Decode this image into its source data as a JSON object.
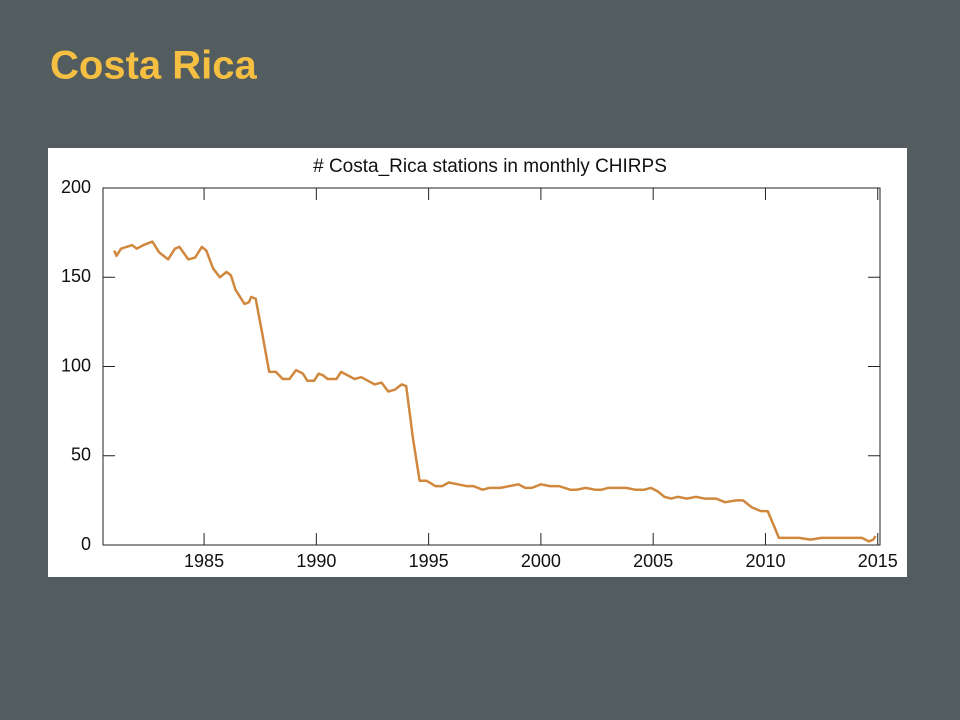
{
  "slide_title": "Costa Rica",
  "chart_data": {
    "type": "line",
    "title": "# Costa_Rica stations in monthly CHIRPS",
    "color": "#d0883e",
    "x": [
      1981.0,
      1981.1,
      1981.3,
      1981.8,
      1982.0,
      1982.3,
      1982.7,
      1983.0,
      1983.4,
      1983.7,
      1983.9,
      1984.3,
      1984.6,
      1984.9,
      1985.1,
      1985.4,
      1985.7,
      1986.0,
      1986.2,
      1986.4,
      1986.8,
      1987.0,
      1987.1,
      1987.3,
      1987.6,
      1987.9,
      1988.2,
      1988.5,
      1988.8,
      1989.1,
      1989.4,
      1989.6,
      1989.9,
      1990.1,
      1990.3,
      1990.5,
      1990.9,
      1991.1,
      1991.4,
      1991.7,
      1992.0,
      1992.3,
      1992.6,
      1992.9,
      1993.2,
      1993.5,
      1993.8,
      1994.0,
      1994.3,
      1994.6,
      1994.9,
      1995.3,
      1995.6,
      1995.9,
      1996.3,
      1996.7,
      1997.0,
      1997.4,
      1997.7,
      1998.2,
      1998.6,
      1999.0,
      1999.3,
      1999.6,
      2000.0,
      2000.4,
      2000.8,
      2001.3,
      2001.6,
      2002.0,
      2002.4,
      2002.7,
      2003.0,
      2003.4,
      2003.8,
      2004.2,
      2004.6,
      2004.9,
      2005.2,
      2005.5,
      2005.8,
      2006.1,
      2006.5,
      2006.9,
      2007.3,
      2007.8,
      2008.2,
      2008.7,
      2009.0,
      2009.4,
      2009.8,
      2010.1,
      2010.4,
      2010.6,
      2011.0,
      2011.5,
      2012.0,
      2012.5,
      2013.0,
      2013.5,
      2014.0,
      2014.3,
      2014.6,
      2014.8,
      2014.9
    ],
    "values": [
      165,
      162,
      166,
      168,
      166,
      168,
      170,
      164,
      160,
      166,
      167,
      160,
      161,
      167,
      165,
      155,
      150,
      153,
      151,
      143,
      135,
      136,
      139,
      138,
      118,
      97,
      97,
      93,
      93,
      98,
      96,
      92,
      92,
      96,
      95,
      93,
      93,
      97,
      95,
      93,
      94,
      92,
      90,
      91,
      86,
      87,
      90,
      89,
      60,
      36,
      36,
      33,
      33,
      35,
      34,
      33,
      33,
      31,
      32,
      32,
      33,
      34,
      32,
      32,
      34,
      33,
      33,
      31,
      31,
      32,
      31,
      31,
      32,
      32,
      32,
      31,
      31,
      32,
      30,
      27,
      26,
      27,
      26,
      27,
      26,
      26,
      24,
      25,
      25,
      21,
      19,
      19,
      10,
      4,
      4,
      4,
      3,
      4,
      4,
      4,
      4,
      4,
      2,
      3,
      5
    ],
    "xlim": [
      1980.5,
      2015.1
    ],
    "xticks": [
      1985,
      1990,
      1995,
      2000,
      2005,
      2010,
      2015
    ],
    "ylim": [
      0,
      200
    ],
    "yticks": [
      0,
      50,
      100,
      150,
      200
    ]
  }
}
